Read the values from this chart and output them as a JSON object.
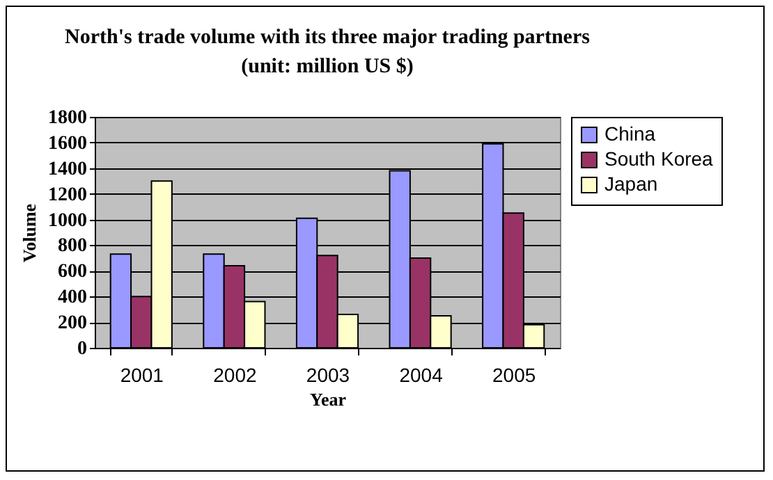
{
  "chart_data": {
    "type": "bar",
    "title": "North's trade volume with its three major trading partners",
    "subtitle": "(unit: million US $)",
    "xlabel": "Year",
    "ylabel": "Volume",
    "categories": [
      "2001",
      "2002",
      "2003",
      "2004",
      "2005"
    ],
    "series": [
      {
        "name": "China",
        "color": "#9999ff",
        "values": [
          730,
          730,
          1010,
          1380,
          1590
        ]
      },
      {
        "name": "South Korea",
        "color": "#993366",
        "values": [
          400,
          640,
          720,
          700,
          1050
        ]
      },
      {
        "name": "Japan",
        "color": "#ffffcc",
        "values": [
          1300,
          360,
          260,
          250,
          180
        ]
      }
    ],
    "ylim": [
      0,
      1800
    ],
    "yticks": [
      0,
      200,
      400,
      600,
      800,
      1000,
      1200,
      1400,
      1600,
      1800
    ],
    "grid": "y",
    "legend": "right"
  }
}
